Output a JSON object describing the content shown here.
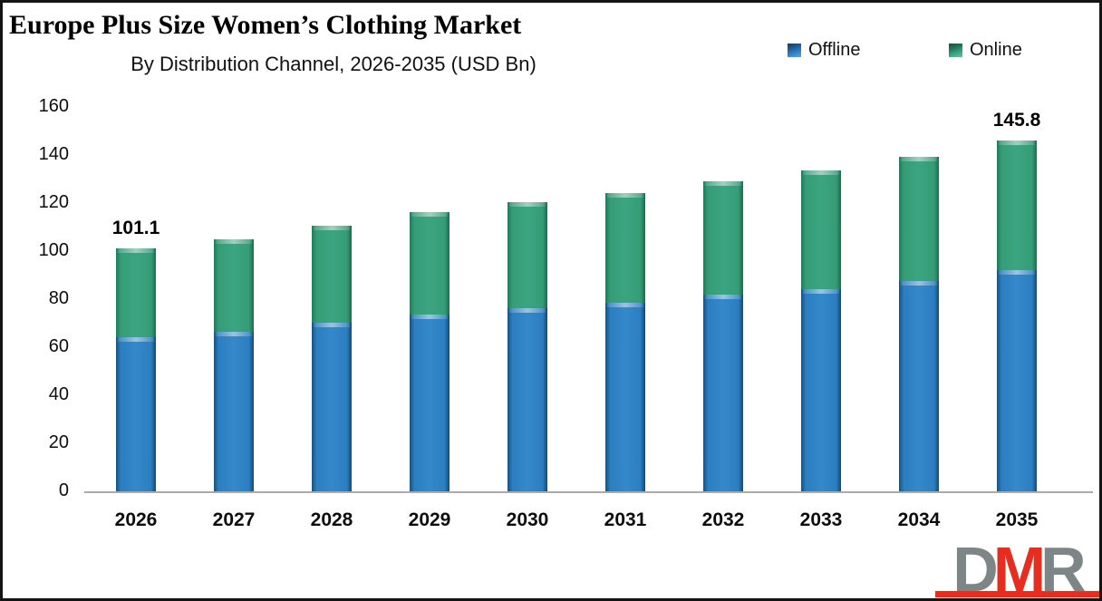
{
  "header": {
    "title": "Europe Plus Size Women’s Clothing Market",
    "subtitle": "By Distribution Channel, 2026-2035 (USD Bn)"
  },
  "legend": {
    "items": [
      {
        "label": "Offline",
        "color": "#2E7FC1"
      },
      {
        "label": "Online",
        "color": "#37A07B"
      }
    ]
  },
  "chart_data": {
    "type": "bar",
    "stacked": true,
    "title": "Europe Plus Size Women’s Clothing Market",
    "subtitle": "By Distribution Channel, 2026-2035 (USD Bn)",
    "unit": "USD Bn",
    "categories": [
      "2026",
      "2027",
      "2028",
      "2029",
      "2030",
      "2031",
      "2032",
      "2033",
      "2034",
      "2035"
    ],
    "series": [
      {
        "name": "Offline",
        "color": "#2E7FC1",
        "values": [
          64.3,
          66.4,
          70.0,
          73.5,
          76.3,
          78.4,
          81.7,
          84.3,
          87.6,
          92.0
        ]
      },
      {
        "name": "Online",
        "color": "#37A07B",
        "values": [
          36.8,
          38.6,
          40.5,
          42.5,
          44.3,
          45.8,
          47.3,
          49.4,
          51.6,
          53.8
        ]
      }
    ],
    "totals": [
      101.1,
      105.0,
      110.5,
      116.0,
      120.6,
      124.2,
      129.0,
      133.7,
      139.2,
      145.8
    ],
    "data_labels": [
      {
        "category": "2026",
        "text": "101.1"
      },
      {
        "category": "2035",
        "text": "145.8"
      }
    ],
    "xlabel": "",
    "ylabel": "",
    "ylim": [
      0,
      160
    ],
    "yticks": [
      0,
      20,
      40,
      60,
      80,
      100,
      120,
      140,
      160
    ],
    "grid": false,
    "legend_position": "top-right",
    "axis_color": "#ABABAB"
  },
  "logo": {
    "letter_d": "D",
    "letter_m": "M",
    "letter_r": "R",
    "red": "#E62D20",
    "gray": "#7E8586"
  }
}
